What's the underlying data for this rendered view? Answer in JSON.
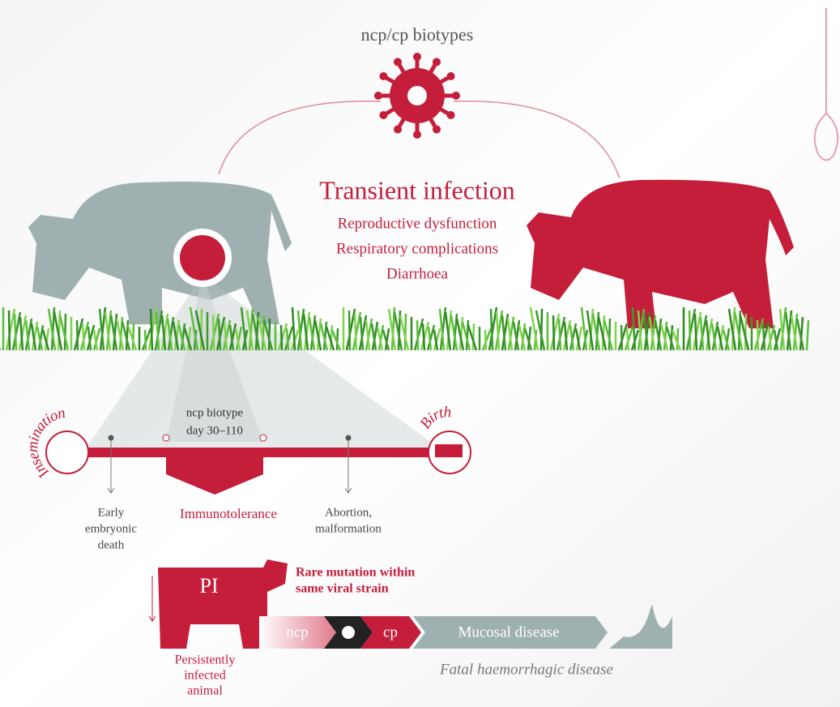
{
  "header": {
    "title": "ncp/cp biotypes"
  },
  "transient": {
    "title": "Transient infection",
    "symptoms": [
      "Reproductive dysfunction",
      "Respiratory complications",
      "Diarrhoea"
    ]
  },
  "timeline": {
    "start": "Insemination",
    "end": "Birth",
    "window": [
      "ncp biotype",
      "day 30–110"
    ],
    "events": [
      {
        "lines": [
          "Early",
          "embryonic",
          "death"
        ]
      },
      {
        "lines": [
          "Immunotolerance"
        ]
      },
      {
        "lines": [
          "Abortion,",
          "malformation"
        ]
      }
    ]
  },
  "pi": {
    "label": "PI",
    "caption": [
      "Persistently",
      "infected",
      "animal"
    ],
    "mutation": [
      "Rare mutation within",
      "same viral strain"
    ]
  },
  "progression": {
    "steps": [
      "ncp",
      "cp",
      "Mucosal disease"
    ],
    "outcome": "Fatal haemorrhagic disease"
  }
}
